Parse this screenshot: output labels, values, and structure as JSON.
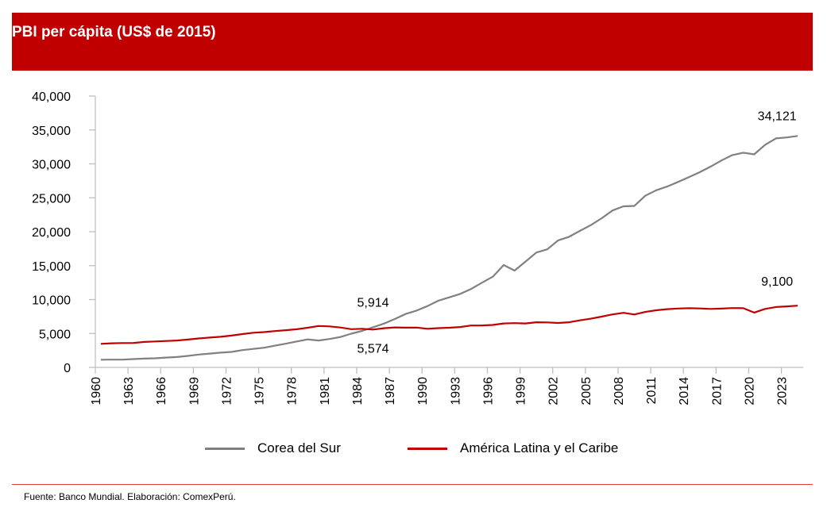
{
  "header": {
    "title": "PBI per cápita (US$ de 2015)"
  },
  "chart_data": {
    "type": "line",
    "title": "PBI per cápita (US$ de 2015)",
    "xlabel": "",
    "ylabel": "",
    "ylim": [
      0,
      40000
    ],
    "yticks": [
      0,
      5000,
      10000,
      15000,
      20000,
      25000,
      30000,
      35000,
      40000
    ],
    "ytick_labels": [
      "0",
      "5,000",
      "10,000",
      "15,000",
      "20,000",
      "25,000",
      "30,000",
      "35,000",
      "40,000"
    ],
    "x": [
      1960,
      1961,
      1962,
      1963,
      1964,
      1965,
      1966,
      1967,
      1968,
      1969,
      1970,
      1971,
      1972,
      1973,
      1974,
      1975,
      1976,
      1977,
      1978,
      1979,
      1980,
      1981,
      1982,
      1983,
      1984,
      1985,
      1986,
      1987,
      1988,
      1989,
      1990,
      1991,
      1992,
      1993,
      1994,
      1995,
      1996,
      1997,
      1998,
      1999,
      2000,
      2001,
      2002,
      2003,
      2004,
      2005,
      2006,
      2007,
      2008,
      2009,
      2010,
      2011,
      2012,
      2013,
      2014,
      2015,
      2016,
      2017,
      2018,
      2019,
      2020,
      2021,
      2022,
      2023,
      2024
    ],
    "xtick_labels": [
      "1960",
      "1963",
      "1966",
      "1969",
      "1972",
      "1975",
      "1978",
      "1981",
      "1984",
      "1987",
      "1990",
      "1993",
      "1996",
      "1999",
      "2002",
      "2005",
      "2008",
      "2011",
      "2014",
      "2017",
      "2020",
      "2023"
    ],
    "grid": false,
    "legend_position": "bottom",
    "series": [
      {
        "name": "Corea del Sur",
        "color": "#808080",
        "values": [
          1130,
          1150,
          1150,
          1230,
          1300,
          1350,
          1450,
          1530,
          1700,
          1900,
          2030,
          2180,
          2280,
          2550,
          2730,
          2900,
          3200,
          3500,
          3830,
          4130,
          3970,
          4190,
          4480,
          4970,
          5380,
          5914,
          6460,
          7130,
          7880,
          8380,
          9040,
          9840,
          10330,
          10830,
          11560,
          12480,
          13370,
          15090,
          14270,
          15600,
          16940,
          17400,
          18730,
          19250,
          20130,
          20970,
          21990,
          23140,
          23740,
          23800,
          25300,
          26100,
          26650,
          27330,
          28050,
          28770,
          29600,
          30500,
          31300,
          31650,
          31400,
          32800,
          33750,
          33900,
          34121
        ]
      },
      {
        "name": "América Latina y el Caribe",
        "color": "#c00000",
        "values": [
          3470,
          3560,
          3590,
          3600,
          3750,
          3820,
          3900,
          3960,
          4100,
          4270,
          4400,
          4520,
          4690,
          4910,
          5110,
          5200,
          5360,
          5490,
          5620,
          5850,
          6100,
          6050,
          5880,
          5640,
          5700,
          5574,
          5780,
          5900,
          5860,
          5870,
          5700,
          5790,
          5850,
          5950,
          6180,
          6190,
          6260,
          6480,
          6530,
          6480,
          6650,
          6630,
          6550,
          6660,
          6940,
          7180,
          7480,
          7810,
          8050,
          7800,
          8170,
          8420,
          8580,
          8680,
          8720,
          8690,
          8620,
          8670,
          8750,
          8730,
          8080,
          8620,
          8900,
          9000,
          9100
        ]
      }
    ],
    "annotations": [
      {
        "series": "Corea del Sur",
        "x": 1985,
        "text": "5,914"
      },
      {
        "series": "América Latina y el Caribe",
        "x": 1985,
        "text": "5,574"
      },
      {
        "series": "Corea del Sur",
        "x": 2024,
        "text": "34,121"
      },
      {
        "series": "América Latina y el Caribe",
        "x": 2024,
        "text": "9,100"
      }
    ]
  },
  "legend": {
    "items": [
      {
        "label": "Corea del Sur",
        "color": "#808080"
      },
      {
        "label": "América Latina y el Caribe",
        "color": "#c00000"
      }
    ]
  },
  "footer": {
    "source": "Fuente: Banco Mundial. Elaboración: ComexPerú."
  }
}
